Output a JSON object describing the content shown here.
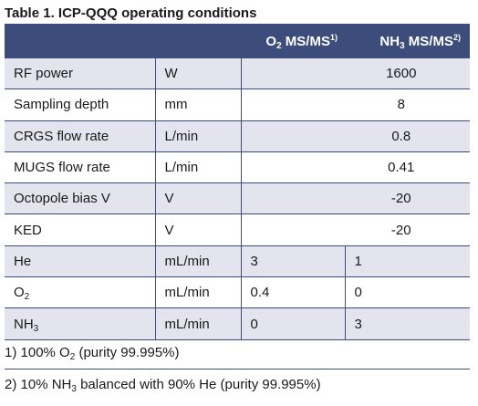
{
  "caption": {
    "label": "Table 1.",
    "text": "ICP-QQQ operating conditions"
  },
  "header": {
    "o2_prefix": "O",
    "o2_sub": "2",
    "o2_suffix": " MS/MS",
    "o2_note": "1)",
    "nh3_prefix": "NH",
    "nh3_sub": "3",
    "nh3_suffix": " MS/MS",
    "nh3_note": "2)"
  },
  "rows": [
    {
      "param": "RF power",
      "unit": "W",
      "value": "1600"
    },
    {
      "param": "Sampling depth",
      "unit": "mm",
      "value": "8"
    },
    {
      "param": "CRGS flow rate",
      "unit": "L/min",
      "value": "0.8"
    },
    {
      "param": "MUGS flow rate",
      "unit": "L/min",
      "value": "0.41"
    },
    {
      "param": "Octopole bias V",
      "unit": "V",
      "value": "-20"
    },
    {
      "param": "KED",
      "unit": "V",
      "value": "-20"
    },
    {
      "param": "He",
      "unit": "mL/min",
      "o2": "3",
      "nh3": "1"
    },
    {
      "param_prefix": "O",
      "param_sub": "2",
      "unit": "mL/min",
      "o2": "0.4",
      "nh3": "0"
    },
    {
      "param_prefix": "NH",
      "param_sub": "3",
      "unit": "mL/min",
      "o2": "0",
      "nh3": "3"
    }
  ],
  "footnotes": {
    "fn1_prefix": "1) 100% O",
    "fn1_sub": "2",
    "fn1_suffix": " (purity 99.995%)",
    "fn2_prefix": "2) 10% NH",
    "fn2_sub": "3",
    "fn2_suffix": " balanced with 90% He (purity 99.995%)"
  },
  "colors": {
    "header_bg": "#3d4d7b",
    "stripe_bg": "#e3e4ee",
    "text": "#1a1a1a"
  }
}
